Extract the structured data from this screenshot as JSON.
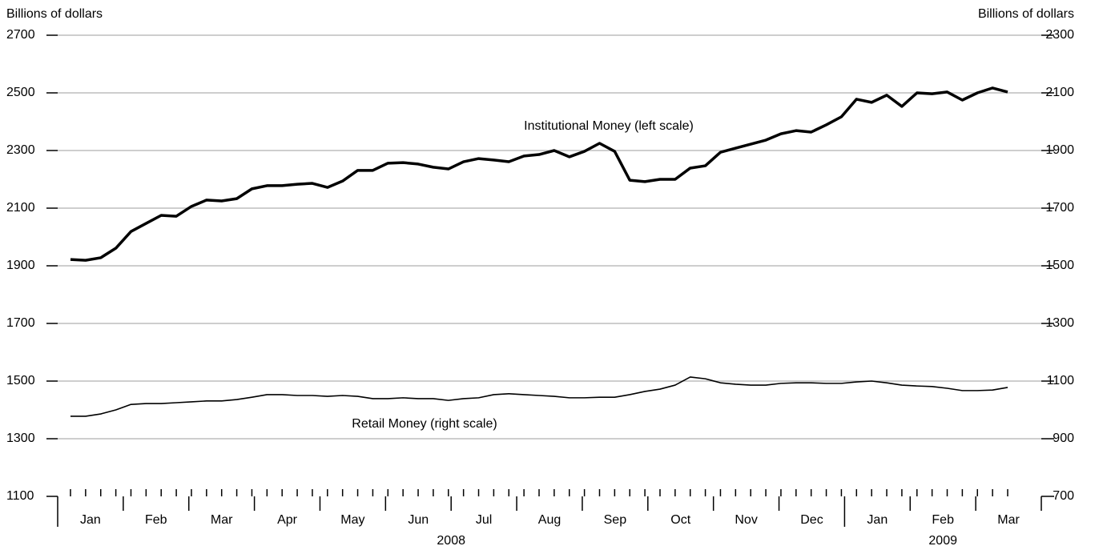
{
  "chart_data": {
    "type": "line",
    "y_label": "Billions of dollars",
    "y2_label": "Billions of dollars",
    "categories": [
      null,
      null,
      null,
      null,
      null,
      null,
      null,
      null,
      null,
      null,
      null,
      null,
      null,
      null,
      null,
      null,
      null,
      null,
      null,
      null,
      null,
      null,
      null,
      null,
      null,
      null,
      null,
      null,
      null,
      null,
      null,
      null,
      null,
      null,
      null,
      null,
      null,
      null,
      null,
      null,
      null,
      null,
      null,
      null,
      null,
      null,
      null,
      null,
      null,
      null,
      null,
      null,
      null,
      null,
      null,
      null,
      null,
      null,
      null,
      null,
      null,
      null,
      null
    ],
    "years": [
      {
        "label": "2008",
        "months": [
          "Jan",
          "Feb",
          "Mar",
          "Apr",
          "May",
          "Jun",
          "Jul",
          "Aug",
          "Sep",
          "Oct",
          "Nov",
          "Dec"
        ]
      },
      {
        "label": "2009",
        "months": [
          "Jan",
          "Feb",
          "Mar"
        ]
      }
    ],
    "ylim": [
      1100,
      2700
    ],
    "yticks": [
      1100,
      1300,
      1500,
      1700,
      1900,
      2100,
      2300,
      2500,
      2700
    ],
    "y2lim": [
      700,
      2300
    ],
    "y2ticks": [
      700,
      900,
      1100,
      1300,
      1500,
      1700,
      1900,
      2100,
      2300
    ],
    "grid": true,
    "series": [
      {
        "name": "Institutional Money (left scale)",
        "color": "#000000",
        "values": [
          1922,
          1919,
          1928,
          1961,
          2019,
          2047,
          2075,
          2072,
          2106,
          2128,
          2125,
          2133,
          2167,
          2178,
          2178,
          2183,
          2186,
          2172,
          2194,
          2231,
          2231,
          2256,
          2258,
          2253,
          2242,
          2236,
          2261,
          2272,
          2267,
          2261,
          2281,
          2286,
          2300,
          2278,
          2297,
          2325,
          2297,
          2197,
          2192,
          2200,
          2200,
          2239,
          2247,
          2294,
          2308,
          2322,
          2336,
          2358,
          2369,
          2364,
          2389,
          2417,
          2478,
          2467,
          2492,
          2453,
          2500,
          2497,
          2503,
          2475,
          2500,
          2517,
          2503
        ]
      },
      {
        "name": "Retail Money (right scale)",
        "color": "#000000",
        "axis": "y2",
        "values": [
          978,
          978,
          986,
          1000,
          1019,
          1022,
          1022,
          1025,
          1028,
          1031,
          1031,
          1036,
          1044,
          1053,
          1053,
          1050,
          1050,
          1047,
          1050,
          1047,
          1039,
          1039,
          1042,
          1039,
          1039,
          1033,
          1039,
          1042,
          1053,
          1056,
          1053,
          1050,
          1047,
          1042,
          1042,
          1044,
          1044,
          1053,
          1064,
          1072,
          1086,
          1114,
          1108,
          1094,
          1089,
          1086,
          1086,
          1092,
          1094,
          1094,
          1092,
          1092,
          1097,
          1100,
          1094,
          1086,
          1083,
          1081,
          1075,
          1067,
          1067,
          1069,
          1078
        ]
      }
    ]
  }
}
